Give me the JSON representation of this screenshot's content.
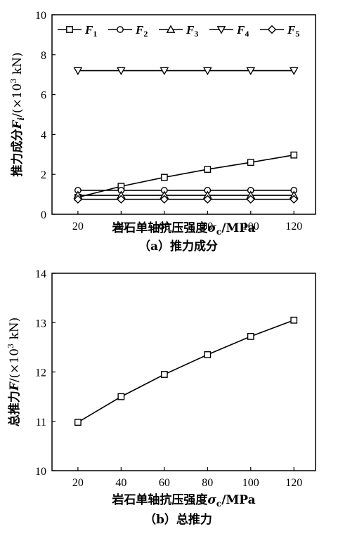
{
  "charts": [
    {
      "caption": "（a）推力成分",
      "ylabel_prefix": "推力成分",
      "ylabel_var": "F",
      "ylabel_sub": "i",
      "ylabel_unit_a": "/(×10",
      "ylabel_unit_sup": "3",
      "ylabel_unit_b": " kN)",
      "xlabel_prefix": "岩石单轴抗压强度",
      "xlabel_var": "σ",
      "xlabel_sub": "c",
      "xlabel_unit": "/MPa"
    },
    {
      "caption": "（b）总推力",
      "ylabel_prefix": "总推力",
      "ylabel_var": "F",
      "ylabel_unit_a": "/(×10",
      "ylabel_unit_sup": "3",
      "ylabel_unit_b": " kN)",
      "xlabel_prefix": "岩石单轴抗压强度",
      "xlabel_var": "σ",
      "xlabel_sub": "c",
      "xlabel_unit": "/MPa"
    }
  ],
  "chart_data": [
    {
      "type": "line",
      "x": [
        20,
        40,
        60,
        80,
        100,
        120
      ],
      "xticks": [
        20,
        40,
        60,
        80,
        100,
        120
      ],
      "yticks": [
        0,
        2,
        4,
        6,
        8,
        10
      ],
      "xlim": [
        8,
        130
      ],
      "ylim": [
        0,
        10
      ],
      "legend_position": "top",
      "series": [
        {
          "name": "F1",
          "base": "F",
          "sub": "1",
          "marker": "square",
          "values": [
            0.85,
            1.4,
            1.85,
            2.25,
            2.6,
            2.97
          ]
        },
        {
          "name": "F2",
          "base": "F",
          "sub": "2",
          "marker": "circle",
          "values": [
            1.2,
            1.2,
            1.2,
            1.2,
            1.2,
            1.2
          ]
        },
        {
          "name": "F3",
          "base": "F",
          "sub": "3",
          "marker": "triangle-up",
          "values": [
            0.95,
            0.95,
            0.95,
            0.95,
            0.95,
            0.95
          ]
        },
        {
          "name": "F4",
          "base": "F",
          "sub": "4",
          "marker": "triangle-down",
          "values": [
            7.2,
            7.2,
            7.2,
            7.2,
            7.2,
            7.2
          ]
        },
        {
          "name": "F5",
          "base": "F",
          "sub": "5",
          "marker": "diamond",
          "values": [
            0.75,
            0.75,
            0.75,
            0.75,
            0.75,
            0.75
          ]
        }
      ]
    },
    {
      "type": "line",
      "x": [
        20,
        40,
        60,
        80,
        100,
        120
      ],
      "xticks": [
        20,
        40,
        60,
        80,
        100,
        120
      ],
      "yticks": [
        10,
        11,
        12,
        13,
        14
      ],
      "xlim": [
        8,
        130
      ],
      "ylim": [
        10,
        14
      ],
      "series": [
        {
          "name": "F",
          "marker": "square",
          "values": [
            10.98,
            11.5,
            11.95,
            12.35,
            12.72,
            13.05
          ]
        }
      ]
    }
  ]
}
